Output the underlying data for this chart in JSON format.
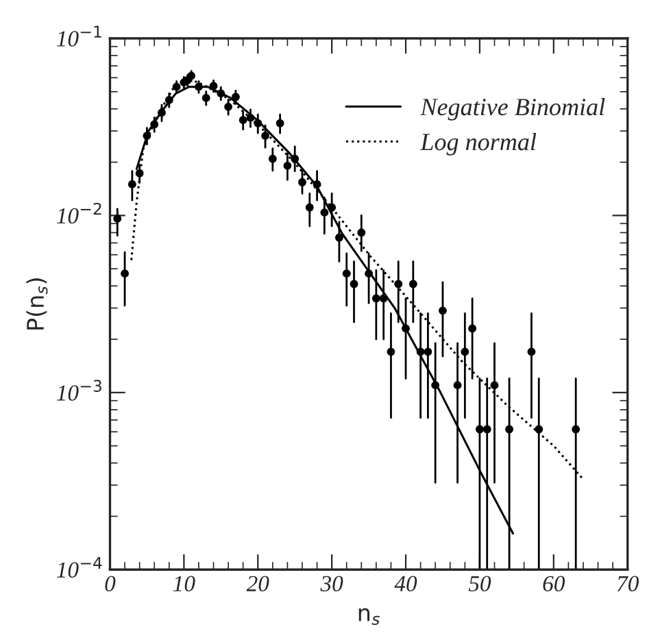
{
  "chart_data": {
    "type": "scatter",
    "xlabel": "n$_{s}$",
    "ylabel": "P(n$_{s}$)",
    "log": "y",
    "xlim": [
      0,
      70
    ],
    "xticks": [
      0,
      10,
      20,
      30,
      40,
      50,
      60,
      70
    ],
    "ylim": [
      0.0001,
      0.1
    ],
    "yticks": [
      {
        "value": 0.0001,
        "label": "10$^{−4}$"
      },
      {
        "value": 0.001,
        "label": "10$^{−3}$"
      },
      {
        "value": 0.01,
        "label": "10$^{−2}$"
      },
      {
        "value": 0.1,
        "label": "10$^{−1}$"
      }
    ],
    "grid": false,
    "legend": "top right",
    "series": [
      {
        "color": "#000000",
        "marker": "circle",
        "x": [
          1,
          2,
          3,
          4,
          5,
          6,
          7,
          8,
          9,
          10,
          10.5,
          11,
          12,
          13,
          14,
          15,
          16,
          17,
          18,
          19,
          20,
          21,
          22,
          23,
          24,
          25,
          26,
          27,
          28,
          29,
          30,
          31,
          32,
          33,
          34,
          35,
          36,
          37,
          38,
          39,
          40,
          41,
          42,
          43,
          44,
          45,
          47,
          48,
          49,
          50,
          51,
          52,
          54,
          57,
          58,
          63
        ],
        "values": [
          0.0096,
          0.0047,
          0.015,
          0.0173,
          0.0282,
          0.0327,
          0.0381,
          0.0449,
          0.0533,
          0.0565,
          0.0581,
          0.0615,
          0.0533,
          0.0461,
          0.0539,
          0.0489,
          0.0411,
          0.0467,
          0.0346,
          0.0356,
          0.0332,
          0.0282,
          0.0209,
          0.0332,
          0.0191,
          0.0209,
          0.0154,
          0.0111,
          0.015,
          0.0104,
          0.0111,
          0.0075,
          0.0047,
          0.0041,
          0.008,
          0.0047,
          0.0034,
          0.0034,
          0.0017,
          0.0041,
          0.0023,
          0.0041,
          0.0017,
          0.0017,
          0.0011,
          0.0029,
          0.0011,
          0.0017,
          0.0023,
          0.00062,
          0.00062,
          0.0011,
          0.00062,
          0.0017,
          0.00062,
          0.00062
        ],
        "errors": [
          [
            0.0077,
            0.0109
          ],
          [
            0.0031,
            0.0062
          ],
          [
            0.0122,
            0.0178
          ],
          0.002,
          0.003,
          0.003,
          0.004,
          0.004,
          0.004,
          0.004,
          0.004,
          0.004,
          0.004,
          0.004,
          0.004,
          0.004,
          0.004,
          0.004,
          0.004,
          0.004,
          0.004,
          0.004,
          0.003,
          0.004,
          [
            0.0159,
            0.0224
          ],
          [
            0.0178,
            0.0245
          ],
          [
            0.0133,
            0.0178
          ],
          [
            0.0087,
            0.0133
          ],
          [
            0.0122,
            0.0178
          ],
          [
            0.0079,
            0.0126
          ],
          [
            0.0087,
            0.0133
          ],
          [
            0.0055,
            0.0092
          ],
          [
            0.0031,
            0.0061
          ],
          [
            0.0025,
            0.0055
          ],
          [
            0.0063,
            0.01
          ],
          [
            0.0032,
            0.0061
          ],
          [
            0.002,
            0.0049
          ],
          [
            0.002,
            0.0049
          ],
          [
            0.00072,
            0.0028
          ],
          [
            0.0025,
            0.0055
          ],
          [
            0.0012,
            0.0034
          ],
          [
            0.0025,
            0.0055
          ],
          [
            0.00072,
            0.0028
          ],
          [
            0.00072,
            0.0028
          ],
          [
            0.00031,
            0.0019
          ],
          [
            0.0016,
            0.0042
          ],
          [
            0.00031,
            0.0019
          ],
          [
            0.00072,
            0.0028
          ],
          [
            0.0012,
            0.0034
          ],
          [
            0.0001,
            0.0012
          ],
          [
            0.0001,
            0.0012
          ],
          [
            0.00031,
            0.0019
          ],
          [
            0.0001,
            0.0012
          ],
          [
            0.00072,
            0.0028
          ],
          [
            0.0001,
            0.0012
          ],
          [
            0.0001,
            0.0012
          ]
        ]
      },
      {
        "type": "line",
        "name": "Negative Binomial",
        "color": "#000000",
        "line_style": "solid",
        "x": [
          3.6,
          5.2,
          7,
          8.9,
          10.7,
          13.2,
          16.3,
          19.9,
          24.3,
          28,
          31.4,
          38.5,
          44.7,
          50.2,
          54.5
        ],
        "values": [
          0.0183,
          0.0299,
          0.0388,
          0.0489,
          0.0533,
          0.0533,
          0.0461,
          0.0346,
          0.0224,
          0.0146,
          0.0079,
          0.003,
          0.001,
          0.00035,
          0.00016
        ]
      },
      {
        "type": "line",
        "name": "Log normal",
        "color": "#000000",
        "line_style": "dotted",
        "x": [
          2.9,
          3.6,
          4.5,
          6.4,
          8.5,
          10.4,
          12.6,
          16.3,
          20.6,
          24.9,
          29.9,
          35.2,
          41.4,
          47.6,
          53.8,
          60,
          64.1
        ],
        "values": [
          0.0056,
          0.0119,
          0.0238,
          0.0366,
          0.0518,
          0.0598,
          0.0548,
          0.0449,
          0.0308,
          0.02,
          0.0112,
          0.0059,
          0.003,
          0.0015,
          0.00084,
          0.0005,
          0.00032
        ]
      }
    ]
  }
}
